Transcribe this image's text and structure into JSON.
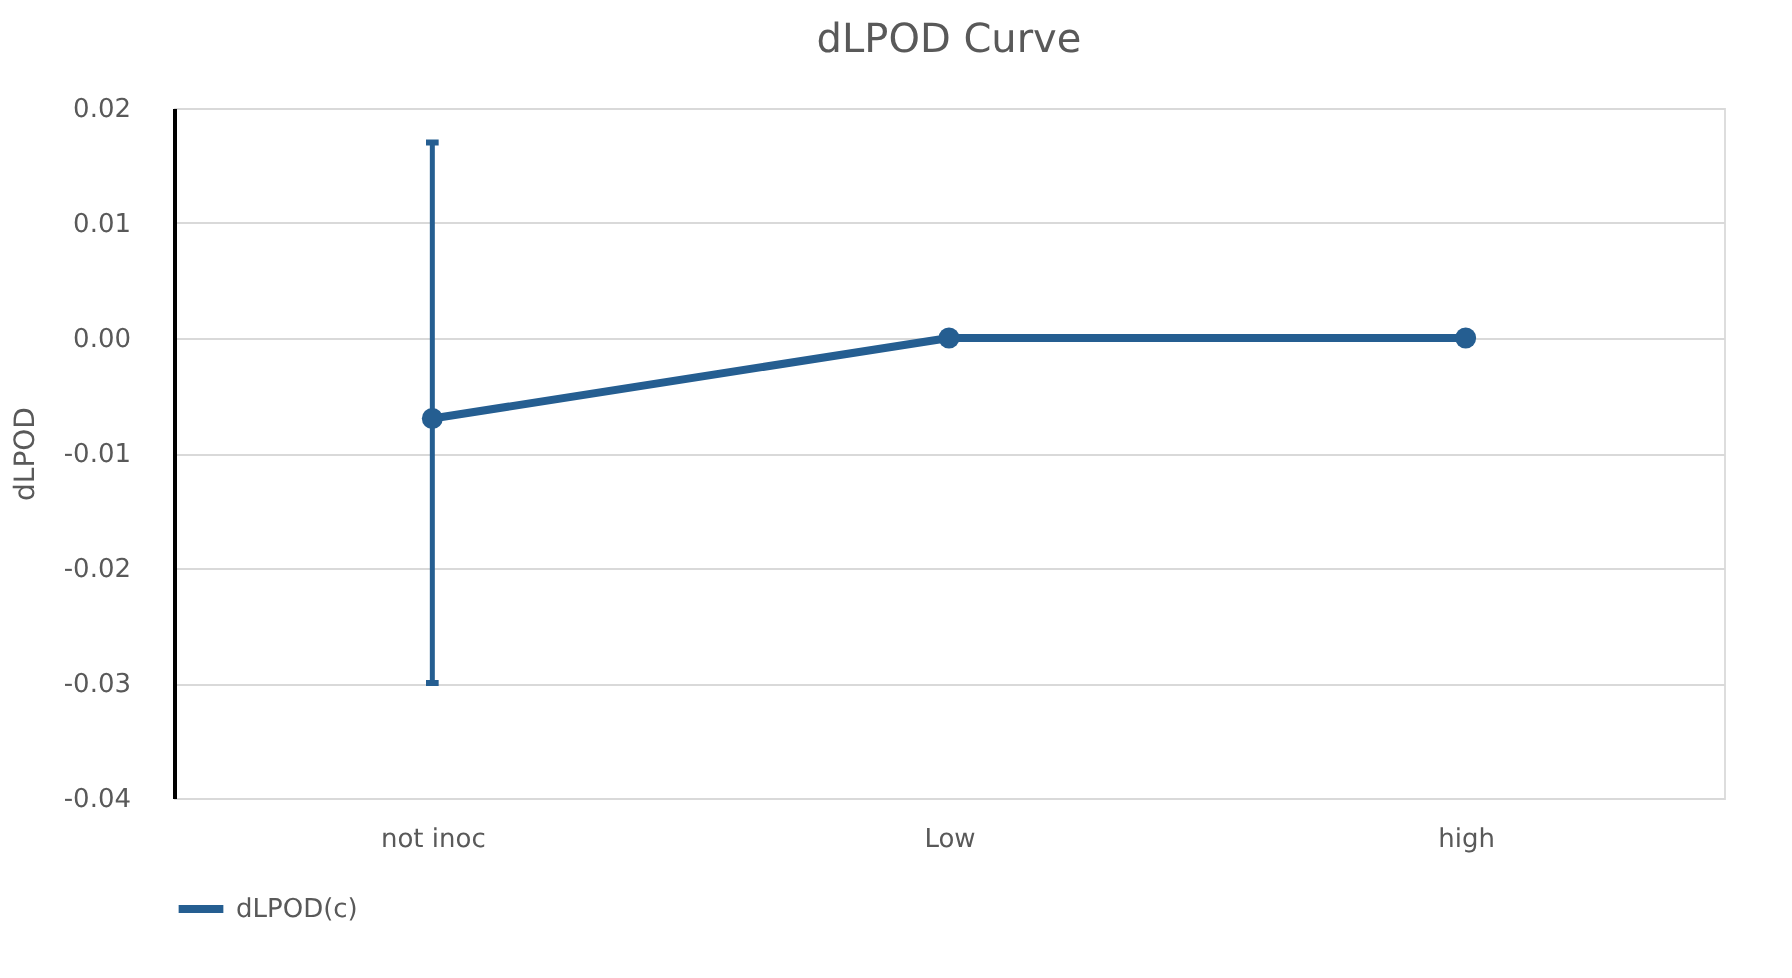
{
  "chart_data": {
    "type": "line",
    "title": "dLPOD Curve",
    "ylabel": "dLPOD",
    "categories": [
      "not inoc",
      "Low",
      "high"
    ],
    "series": [
      {
        "name": "dLPOD(c)",
        "color": "#255e91",
        "values": [
          -0.007,
          0.0,
          0.0
        ],
        "errors": [
          [
            -0.03,
            0.017
          ],
          null,
          null
        ]
      }
    ],
    "ylim": [
      -0.04,
      0.02
    ],
    "yticks": [
      {
        "value": -0.04,
        "label": "-0.04"
      },
      {
        "value": -0.03,
        "label": "-0.03"
      },
      {
        "value": -0.02,
        "label": "-0.02"
      },
      {
        "value": -0.01,
        "label": "-0.01"
      },
      {
        "value": 0,
        "label": "0.00"
      },
      {
        "value": 0.01,
        "label": "0.01"
      },
      {
        "value": 0.02,
        "label": "0.02"
      }
    ],
    "grid": "y",
    "legend": "bottom",
    "marker": "circle",
    "line_style": "solid"
  }
}
